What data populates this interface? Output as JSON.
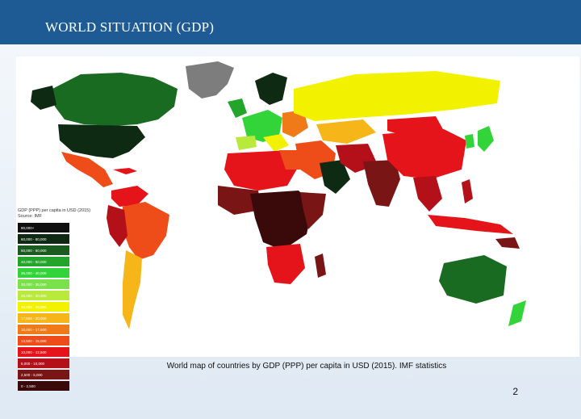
{
  "header": {
    "title": "WORLD SITUATION (GDP)"
  },
  "legend": {
    "title": "GDP (PPP) per capita in USD (2015)",
    "source": "Source: IMF",
    "items": [
      {
        "label": "80,000+",
        "color": "#0f0f0f"
      },
      {
        "label": "60,000 - 80,000",
        "color": "#0f2a12"
      },
      {
        "label": "50,000 - 60,000",
        "color": "#1a5c1f"
      },
      {
        "label": "40,000 - 50,000",
        "color": "#22a52a"
      },
      {
        "label": "35,000 - 40,000",
        "color": "#33d43a"
      },
      {
        "label": "30,000 - 35,000",
        "color": "#7ae14b"
      },
      {
        "label": "25,000 - 30,000",
        "color": "#b8e93b"
      },
      {
        "label": "20,000 - 25,000",
        "color": "#f2f200"
      },
      {
        "label": "17,500 - 20,000",
        "color": "#f6b61a"
      },
      {
        "label": "15,000 - 17,500",
        "color": "#f07a17"
      },
      {
        "label": "12,500 - 15,000",
        "color": "#ee4c18"
      },
      {
        "label": "10,000 - 12,500",
        "color": "#e4141a"
      },
      {
        "label": "5,000 - 10,000",
        "color": "#b3101a"
      },
      {
        "label": "2,500 - 5,000",
        "color": "#7a1515"
      },
      {
        "label": "0 - 2,500",
        "color": "#3a0a0a"
      }
    ]
  },
  "caption": "World map of countries by GDP (PPP) per capita in USD (2015). IMF statistics",
  "page_number": "2"
}
